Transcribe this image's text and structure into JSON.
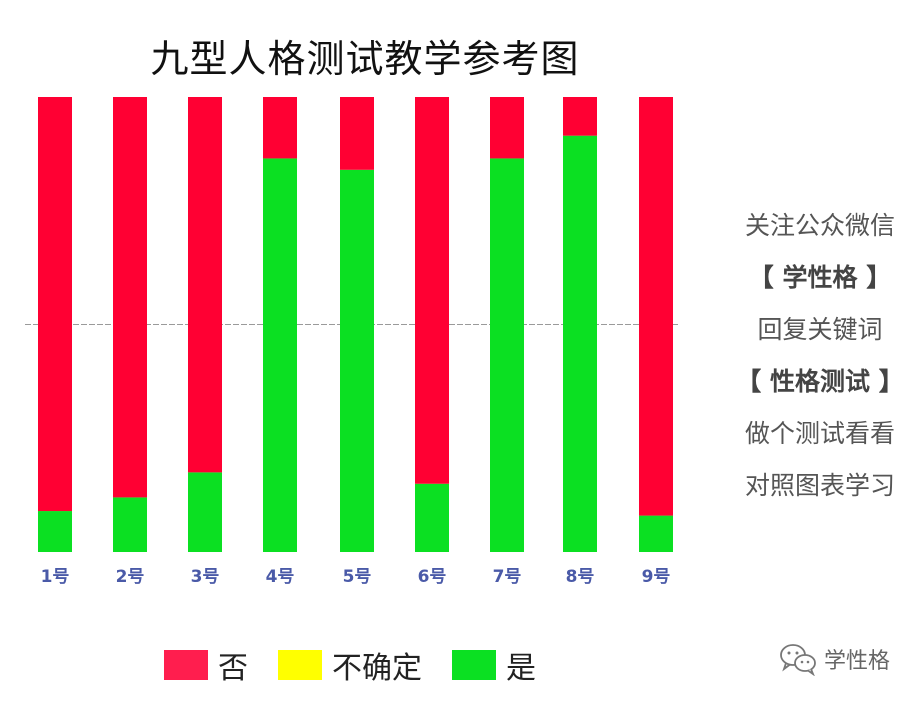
{
  "chart_data": {
    "type": "bar",
    "stacked": true,
    "percent": true,
    "title": "九型人格测试教学参考图",
    "categories": [
      "1号",
      "2号",
      "3号",
      "4号",
      "5号",
      "6号",
      "7号",
      "8号",
      "9号"
    ],
    "series": [
      {
        "name": "是",
        "color": "#0be022",
        "values": [
          9,
          12,
          17.5,
          86.5,
          84,
          15,
          86.5,
          91.5,
          8
        ]
      },
      {
        "name": "不确定",
        "color": "#ffff00",
        "values": [
          0,
          0,
          0,
          0,
          0,
          0,
          0,
          0,
          0
        ]
      },
      {
        "name": "否",
        "color": "#ff0033",
        "values": [
          91,
          88,
          82.5,
          13.5,
          16,
          85,
          13.5,
          8.5,
          92
        ]
      }
    ],
    "ylim": [
      0,
      100
    ],
    "reference_line": 50,
    "legend_order": [
      "否",
      "不确定",
      "是"
    ],
    "legend_position": "bottom"
  },
  "legend": {
    "items": [
      {
        "label": "否",
        "color": "#ff1e4e"
      },
      {
        "label": "不确定",
        "color": "#ffff00"
      },
      {
        "label": "是",
        "color": "#0be022"
      }
    ]
  },
  "side_panel": {
    "lines": [
      {
        "text": "关注公众微信",
        "bold": false
      },
      {
        "text": "【 学性格 】",
        "bold": true
      },
      {
        "text": "回复关键词",
        "bold": false
      },
      {
        "text": "【 性格测试 】",
        "bold": true
      },
      {
        "text": "做个测试看看",
        "bold": false
      },
      {
        "text": "对照图表学习",
        "bold": false
      }
    ]
  },
  "watermark": {
    "icon": "wechat-icon",
    "text": "学性格"
  }
}
